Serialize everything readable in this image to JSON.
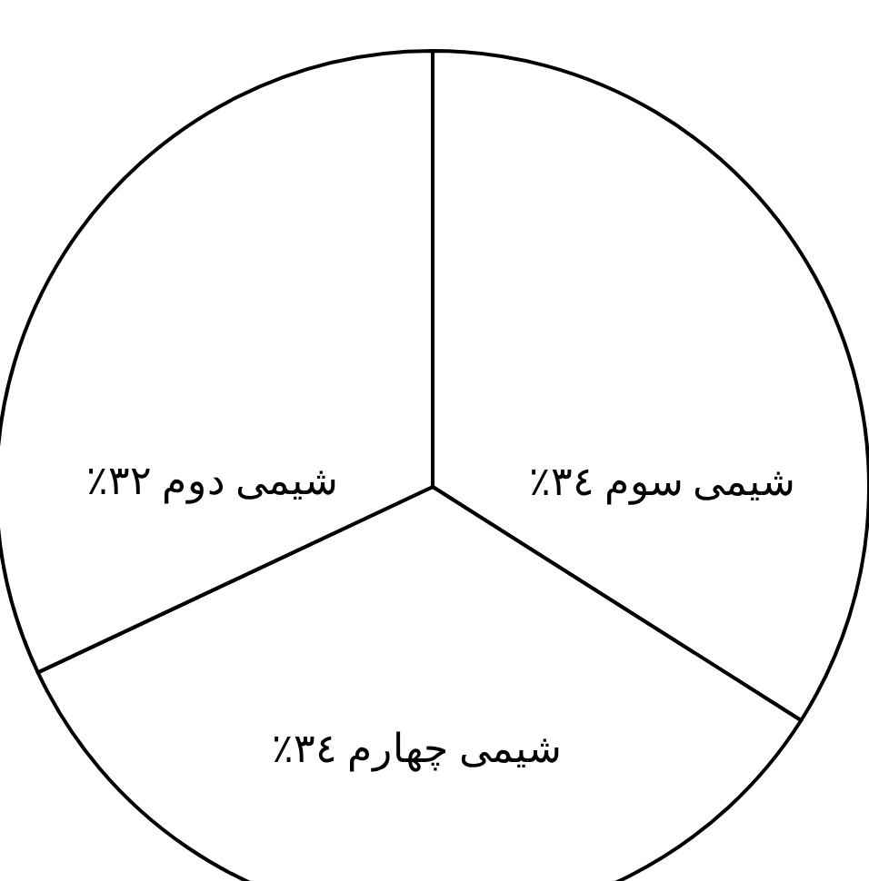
{
  "chart_data": {
    "type": "pie",
    "categories": [
      "شیمی سوم",
      "شیمی چهارم",
      "شیمی دوم"
    ],
    "values": [
      34,
      34,
      32
    ],
    "value_labels": [
      "۳٤٪",
      "۳٤٪",
      "۳۲٪"
    ],
    "colors": [
      "#ffffff",
      "#ffffff",
      "#ffffff"
    ],
    "legend": false
  }
}
